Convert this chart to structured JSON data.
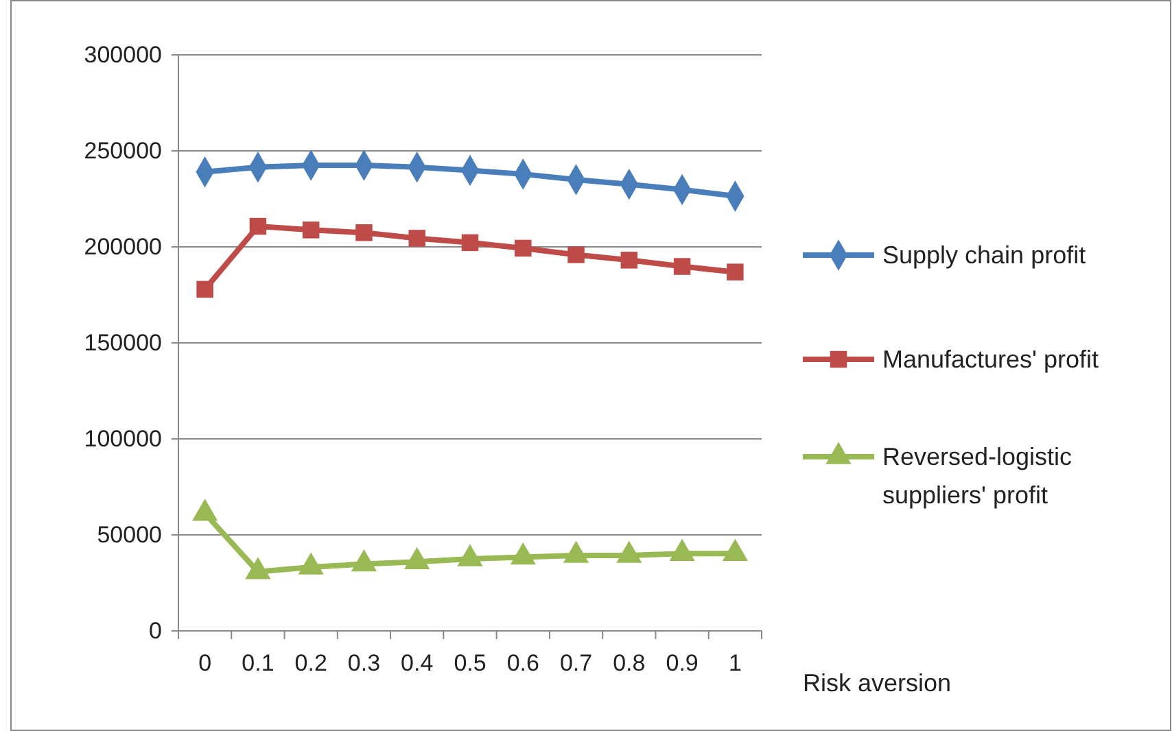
{
  "chart_data": {
    "type": "line",
    "xlabel": "Risk aversion",
    "categories": [
      "0",
      "0.1",
      "0.2",
      "0.3",
      "0.4",
      "0.5",
      "0.6",
      "0.7",
      "0.8",
      "0.9",
      "1"
    ],
    "series": [
      {
        "name": "Supply chain profit",
        "color": "#4a7ebb",
        "marker": "diamond",
        "values": [
          239000,
          241500,
          242500,
          242500,
          241500,
          239800,
          237900,
          235000,
          232600,
          229800,
          226400
        ]
      },
      {
        "name": "Manufactures' profit",
        "color": "#be4b48",
        "marker": "square",
        "values": [
          177900,
          210700,
          208800,
          207400,
          204500,
          202200,
          199300,
          195900,
          193100,
          189800,
          186900
        ]
      },
      {
        "name": "Reversed-logistic suppliers' profit",
        "color": "#98b954",
        "marker": "triangle",
        "values": [
          61200,
          30800,
          33200,
          34800,
          36000,
          37500,
          38400,
          39300,
          39300,
          40300,
          40300
        ]
      }
    ],
    "ylim": [
      0,
      300000
    ],
    "yticks": [
      0,
      50000,
      100000,
      150000,
      200000,
      250000,
      300000
    ],
    "grid": "y",
    "legend": "right",
    "line_style": "solid"
  }
}
